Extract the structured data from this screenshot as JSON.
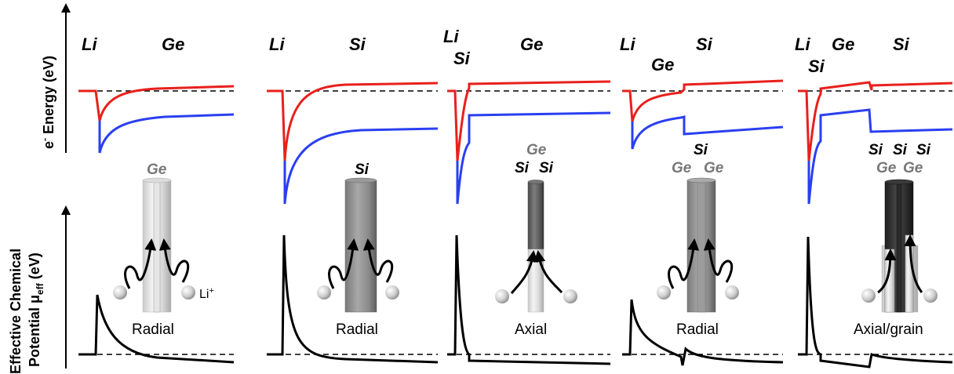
{
  "axes": {
    "top_label_main": "e",
    "top_label_sup": "-",
    "top_label_rest": " Energy (eV)",
    "bottom_label_line1": "Effective Chemical",
    "bottom_label_line2_main": "Potential μ",
    "bottom_label_line2_sub": "eff",
    "bottom_label_line2_rest": " (eV)"
  },
  "li_ion_label": "Li",
  "li_ion_charge": "+",
  "panels": [
    {
      "materials": [
        "Li",
        "Ge"
      ],
      "rod_labels": [
        "Ge"
      ],
      "mode": "Radial"
    },
    {
      "materials": [
        "Li",
        "Si"
      ],
      "rod_labels": [
        "Si"
      ],
      "mode": "Radial"
    },
    {
      "materials": [
        "Li",
        "Si",
        "Ge"
      ],
      "rod_labels": [
        "Ge",
        "Si",
        "Si"
      ],
      "mode": "Axial"
    },
    {
      "materials": [
        "Li",
        "Ge",
        "Si"
      ],
      "rod_labels": [
        "Si",
        "Ge",
        "Ge"
      ],
      "mode": "Radial"
    },
    {
      "materials": [
        "Li",
        "Si",
        "Ge",
        "Si"
      ],
      "rod_labels": [
        "Si",
        "Si",
        "Si",
        "Ge",
        "Ge"
      ],
      "mode": "Axial/grain"
    }
  ],
  "colors": {
    "conduction_band": "#e8201c",
    "valence_band": "#2a3ff0",
    "chemical_potential": "#000000"
  }
}
